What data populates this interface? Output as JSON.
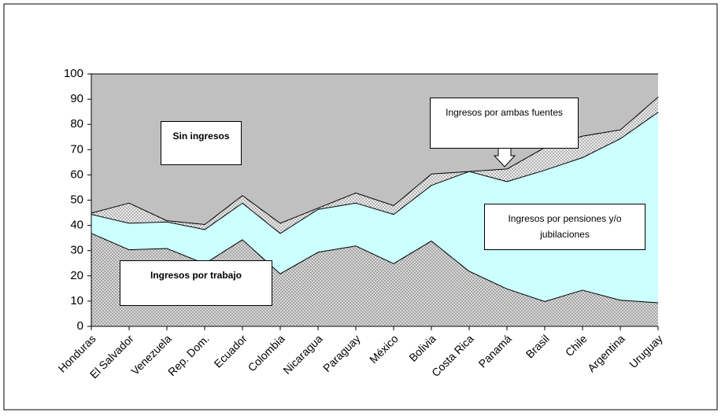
{
  "chart_data": {
    "type": "stacked-area",
    "categories": [
      "Honduras",
      "El Salvador",
      "Venezuela",
      "Rep. Dom.",
      "Ecuador",
      "Colombia",
      "Nicaragua",
      "Paraguay",
      "México",
      "Bolivia",
      "Costa Rica",
      "Panamá",
      "Brasil",
      "Chile",
      "Argentina",
      "Uruguay"
    ],
    "series": [
      {
        "name": "Ingresos por trabajo",
        "color": "#d9d9d9",
        "dotted": true,
        "values": [
          37,
          30.5,
          31,
          25,
          34.5,
          21,
          29.5,
          32,
          25,
          34,
          22,
          15,
          10,
          14.5,
          10.5,
          9.5
        ]
      },
      {
        "name": "Ingresos por pensiones y/o jubilaciones",
        "color": "#ccffff",
        "dotted": false,
        "values": [
          7.5,
          10.5,
          10.5,
          13.5,
          14.5,
          16,
          17,
          17,
          19.5,
          22,
          39.5,
          42.5,
          52,
          52.5,
          64,
          75.5
        ]
      },
      {
        "name": "Ingresos por ambas fuentes",
        "color": "#eeeeee",
        "dotted": true,
        "values": [
          0.5,
          8,
          0.5,
          2,
          3,
          4,
          0.5,
          4,
          3.5,
          4.5,
          0,
          5,
          9,
          8.5,
          3.5,
          6
        ]
      },
      {
        "name": "Sin ingresos",
        "color": "#c0c0c0",
        "dotted": false,
        "values": [
          55,
          51,
          58,
          59.5,
          48,
          59,
          53,
          47,
          52,
          39.5,
          38.5,
          37.5,
          29,
          24.5,
          22,
          9
        ]
      }
    ],
    "ylim": [
      0,
      100
    ],
    "yticks": [
      0,
      10,
      20,
      30,
      40,
      50,
      60,
      70,
      80,
      90,
      100
    ]
  }
}
